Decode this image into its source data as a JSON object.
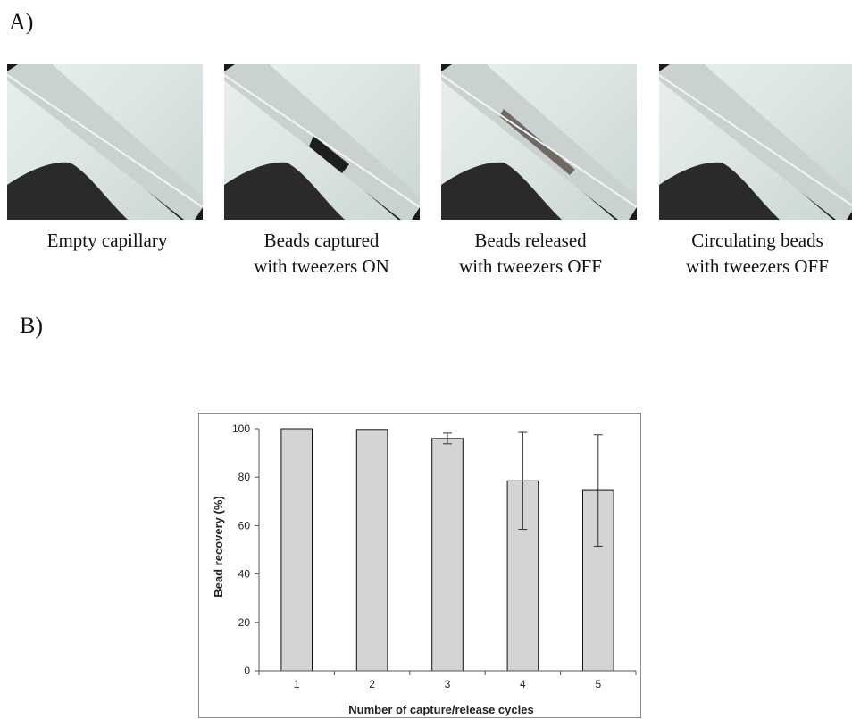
{
  "panelA": {
    "label": "A)",
    "captions": [
      [
        "Empty capillary"
      ],
      [
        "Beads captured",
        "with tweezers ON"
      ],
      [
        "Beads released",
        "with tweezers OFF"
      ],
      [
        "Circulating beads",
        "with tweezers OFF"
      ]
    ]
  },
  "panelB": {
    "label": "B)"
  },
  "chart_data": {
    "type": "bar",
    "categories": [
      "1",
      "2",
      "3",
      "4",
      "5"
    ],
    "values": [
      100,
      99.7,
      96,
      78.5,
      74.5
    ],
    "error": [
      0,
      0,
      2.2,
      20,
      23
    ],
    "xlabel": "Number of capture/release cycles",
    "ylabel": "Bead recovery (%)",
    "ylim": [
      0,
      100
    ],
    "yticks": [
      0,
      20,
      40,
      60,
      80,
      100
    ],
    "bar_color": "#d4d4d4",
    "grid": false,
    "legend": "none"
  }
}
